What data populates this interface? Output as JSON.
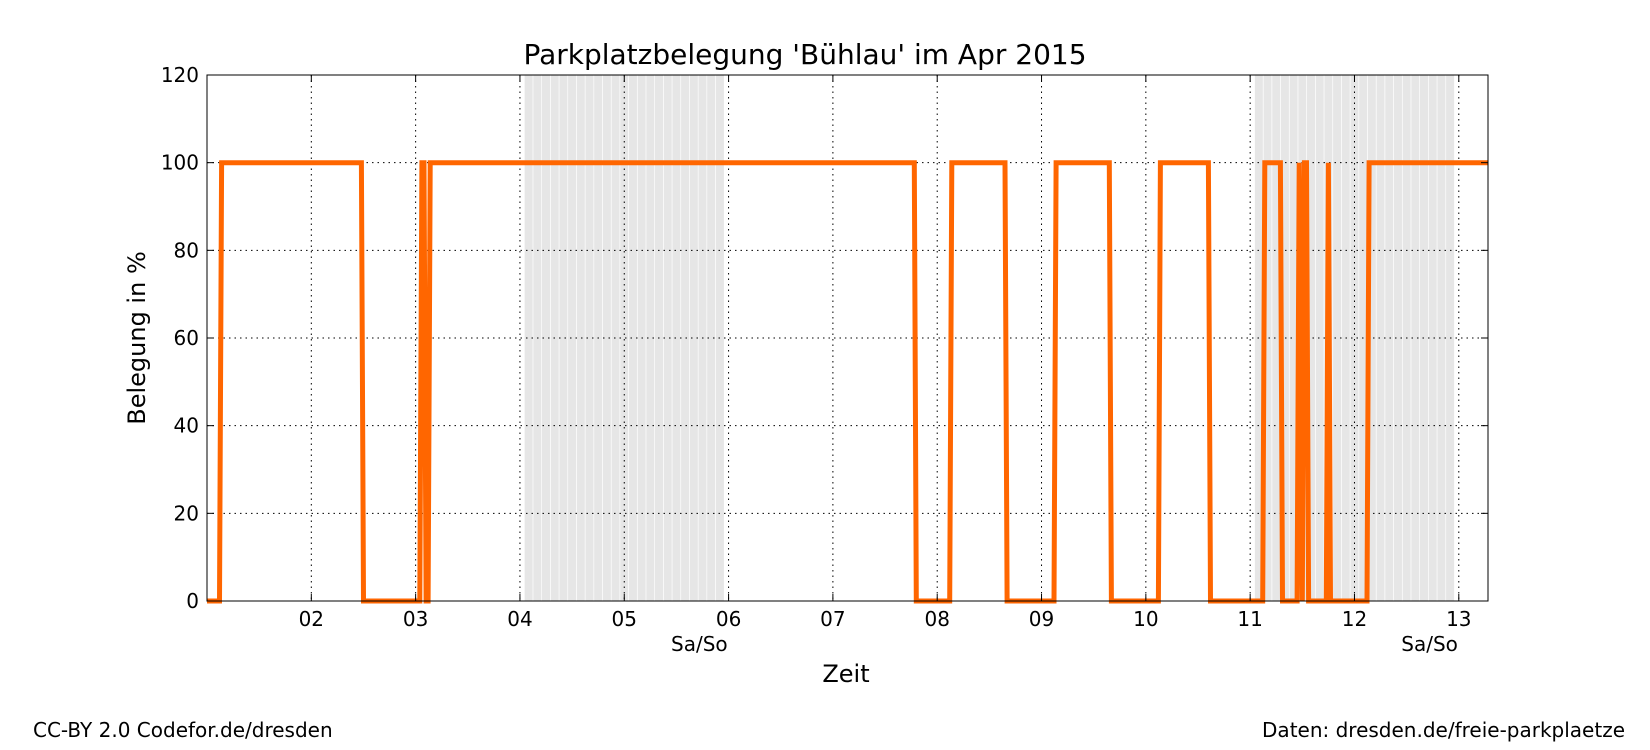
{
  "chart_data": {
    "type": "line",
    "title": "Parkplatzbelegung 'Bühlau' im Apr 2015",
    "xlabel": "Zeit",
    "ylabel": "Belegung in %",
    "xlim": [
      1.0,
      13.28
    ],
    "ylim": [
      0,
      120
    ],
    "x_ticks": [
      {
        "x": 2,
        "label": "02"
      },
      {
        "x": 3,
        "label": "03"
      },
      {
        "x": 4,
        "label": "04"
      },
      {
        "x": 5,
        "label": "05"
      },
      {
        "x": 6,
        "label": "06"
      },
      {
        "x": 7,
        "label": "07"
      },
      {
        "x": 8,
        "label": "08"
      },
      {
        "x": 9,
        "label": "09"
      },
      {
        "x": 10,
        "label": "10"
      },
      {
        "x": 11,
        "label": "11"
      },
      {
        "x": 12,
        "label": "12"
      },
      {
        "x": 13,
        "label": "13"
      }
    ],
    "y_ticks": [
      0,
      20,
      40,
      60,
      80,
      100,
      120
    ],
    "weekend_labels": [
      {
        "x": 5.72,
        "label": "Sa/So"
      },
      {
        "x": 12.72,
        "label": "Sa/So"
      }
    ],
    "weekend_shading": [
      [
        4.0,
        6.0
      ],
      [
        11.0,
        13.0
      ]
    ],
    "grid": true,
    "series": [
      {
        "color": "#ff6600",
        "x": [
          1.0,
          1.12,
          1.14,
          2.48,
          2.5,
          3.04,
          3.06,
          3.08,
          3.1,
          3.12,
          3.14,
          7.78,
          7.8,
          8.12,
          8.14,
          8.65,
          8.67,
          9.12,
          9.14,
          9.65,
          9.67,
          10.12,
          10.14,
          10.6,
          10.62,
          11.12,
          11.14,
          11.29,
          11.31,
          11.45,
          11.47,
          11.5,
          11.52,
          11.54,
          11.56,
          11.73,
          11.75,
          11.77,
          12.12,
          12.14,
          13.28
        ],
        "y": [
          0,
          0,
          100,
          100,
          0,
          0,
          100,
          100,
          0,
          0,
          100,
          100,
          0,
          0,
          100,
          100,
          0,
          0,
          100,
          100,
          0,
          0,
          100,
          100,
          0,
          0,
          100,
          100,
          0,
          0,
          100,
          0,
          100,
          100,
          0,
          0,
          100,
          0,
          0,
          100,
          100
        ]
      }
    ]
  },
  "footer": {
    "left": "CC-BY 2.0 Codefor.de/dresden",
    "right": "Daten: dresden.de/freie-parkplaetze"
  }
}
